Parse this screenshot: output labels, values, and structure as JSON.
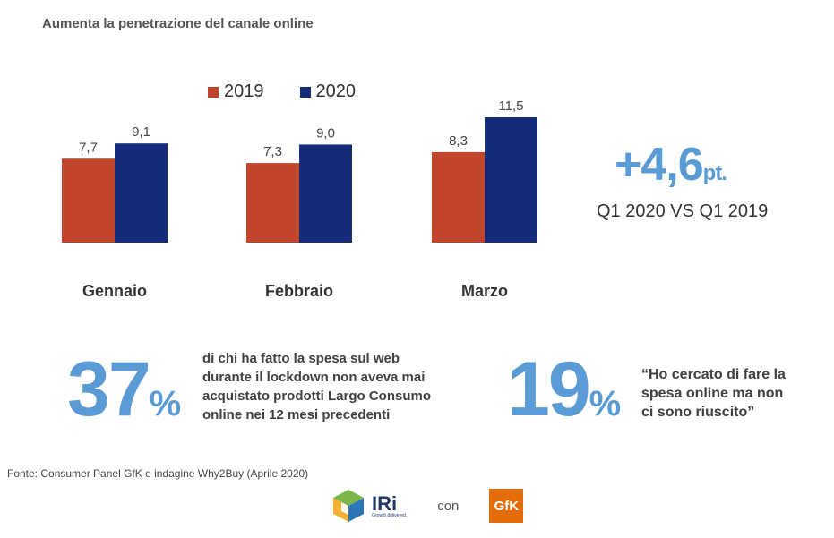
{
  "title": "Aumenta la penetrazione del canale online",
  "chart_data": {
    "type": "bar",
    "categories": [
      "Gennaio",
      "Febbraio",
      "Marzo"
    ],
    "series": [
      {
        "name": "2019",
        "values": [
          7.7,
          7.3,
          8.3
        ],
        "labels": [
          "7,7",
          "7,3",
          "8,3"
        ],
        "color": "#c0452a"
      },
      {
        "name": "2020",
        "values": [
          9.1,
          9.0,
          11.5
        ],
        "labels": [
          "9,1",
          "9,0",
          "11,5"
        ],
        "color": "#152c7a"
      }
    ],
    "ylim": [
      0,
      11.5
    ],
    "legend": "top",
    "grid": false
  },
  "highlight": {
    "number": "+4,6",
    "unit": "pt.",
    "subtitle": "Q1 2020 VS Q1 2019",
    "color": "#5b9bd5"
  },
  "stat_left": {
    "number": "37",
    "sign": "%",
    "lines": [
      "di chi ha fatto la spesa sul web",
      "durante il  lockdown non aveva mai",
      "acquistato prodotti  Largo Consumo",
      "online nei 12 mesi precedenti"
    ]
  },
  "stat_right": {
    "number": "19",
    "sign": "%",
    "lines": [
      "“Ho cercato di fare la",
      "spesa online ma non",
      "ci sono riuscito”"
    ]
  },
  "footer": "Fonte: Consumer Panel GfK e indagine Why2Buy (Aprile 2020)",
  "logos": {
    "iri": "IRi",
    "iri_tagline": "Growth delivered.",
    "connector": "con",
    "gfk": "GfK"
  }
}
